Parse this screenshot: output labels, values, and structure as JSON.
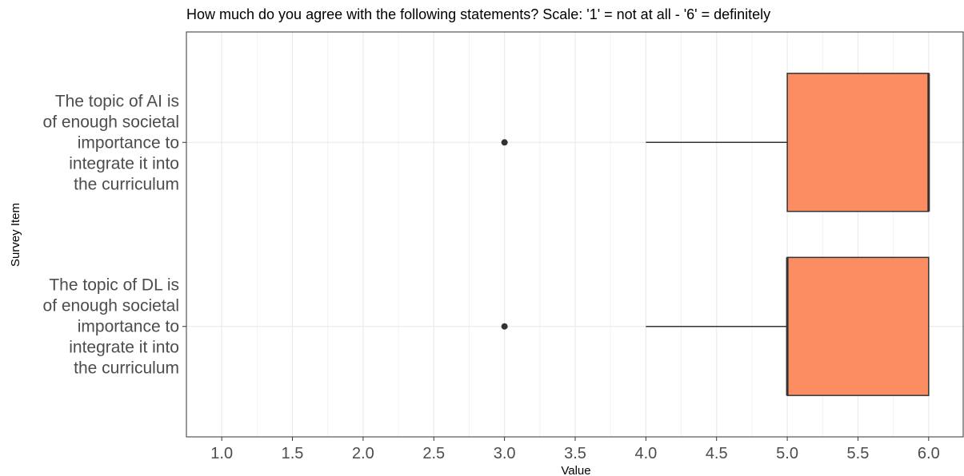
{
  "chart_data": {
    "type": "boxplot",
    "title": "How much do you agree with the following statements? Scale: '1' = not at all - '6' = definitely",
    "xlabel": "Value",
    "ylabel": "Survey Item",
    "xlim": [
      0.75,
      6.25
    ],
    "xticks": [
      "1.0",
      "1.5",
      "2.0",
      "2.5",
      "3.0",
      "3.5",
      "4.0",
      "4.5",
      "5.0",
      "5.5",
      "6.0"
    ],
    "grid": true,
    "fill_color": "#fc8d62",
    "categories": [
      [
        "The topic of DL is",
        "of enough societal",
        "importance to",
        "integrate it into",
        "the curriculum"
      ],
      [
        "The topic of AI is",
        "of enough societal",
        "importance to",
        "integrate it into",
        "the curriculum"
      ]
    ],
    "boxes": [
      {
        "whisker_low": 4,
        "q1": 5,
        "median": 5,
        "q3": 6,
        "whisker_high": 6,
        "outliers": [
          3
        ]
      },
      {
        "whisker_low": 4,
        "q1": 5,
        "median": 6,
        "q3": 6,
        "whisker_high": 6,
        "outliers": [
          3
        ]
      }
    ]
  }
}
